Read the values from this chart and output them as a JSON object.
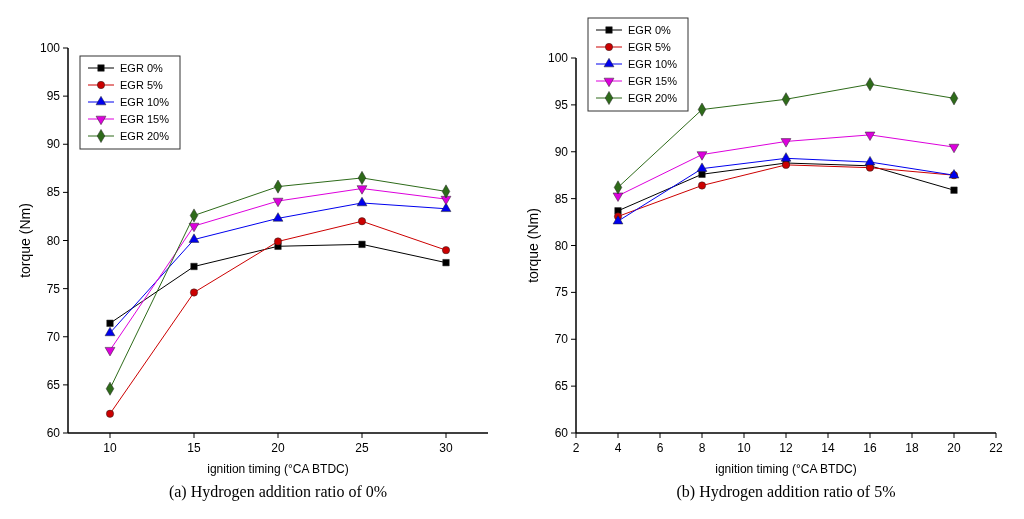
{
  "chart_data": [
    {
      "type": "line",
      "title": "(a) Hydrogen addition ratio of 0%",
      "xlabel": "ignition timing (°CA BTDC)",
      "ylabel": "torque (Nm)",
      "x": [
        10,
        15,
        20,
        25,
        30
      ],
      "xlim": [
        7.5,
        32.5
      ],
      "xticks": [
        10,
        15,
        20,
        25,
        30
      ],
      "ylim": [
        60,
        100
      ],
      "yticks": [
        60,
        65,
        70,
        75,
        80,
        85,
        90,
        95,
        100
      ],
      "legend": "top left",
      "grid": false,
      "series": [
        {
          "name": "EGR 0%",
          "color": "#000000",
          "marker": "square",
          "values": [
            71.4,
            77.3,
            79.4,
            79.6,
            77.7
          ]
        },
        {
          "name": "EGR 5%",
          "color": "#cc0000",
          "marker": "circle",
          "values": [
            62.0,
            74.6,
            79.9,
            82.0,
            79.0
          ]
        },
        {
          "name": "EGR 10%",
          "color": "#0000ee",
          "marker": "triangle",
          "values": [
            70.4,
            80.1,
            82.3,
            83.9,
            83.3
          ]
        },
        {
          "name": "EGR 15%",
          "color": "#dd00dd",
          "marker": "triangle-down",
          "values": [
            68.6,
            81.5,
            84.1,
            85.4,
            84.3
          ]
        },
        {
          "name": "EGR 20%",
          "color": "#2e6b1a",
          "marker": "diamond",
          "values": [
            64.6,
            82.6,
            85.6,
            86.5,
            85.1
          ]
        }
      ]
    },
    {
      "type": "line",
      "title": "(b) Hydrogen addition ratio of 5%",
      "xlabel": "ignition timing (°CA BTDC)",
      "ylabel": "torque (Nm)",
      "x": [
        4,
        8,
        12,
        16,
        20
      ],
      "xlim": [
        2,
        22
      ],
      "xticks": [
        2,
        4,
        6,
        8,
        10,
        12,
        14,
        16,
        18,
        20,
        22
      ],
      "ylim": [
        60,
        100
      ],
      "yticks": [
        60,
        65,
        70,
        75,
        80,
        85,
        90,
        95,
        100
      ],
      "legend": "top left",
      "grid": false,
      "series": [
        {
          "name": "EGR 0%",
          "color": "#000000",
          "marker": "square",
          "values": [
            83.7,
            87.6,
            88.8,
            88.5,
            85.9
          ]
        },
        {
          "name": "EGR 5%",
          "color": "#cc0000",
          "marker": "circle",
          "values": [
            83.1,
            86.4,
            88.6,
            88.3,
            87.5
          ]
        },
        {
          "name": "EGR 10%",
          "color": "#0000ee",
          "marker": "triangle",
          "values": [
            82.6,
            88.2,
            89.3,
            88.9,
            87.5
          ]
        },
        {
          "name": "EGR 15%",
          "color": "#dd00dd",
          "marker": "triangle-down",
          "values": [
            85.3,
            89.7,
            91.1,
            91.8,
            90.5
          ]
        },
        {
          "name": "EGR 20%",
          "color": "#2e6b1a",
          "marker": "diamond",
          "values": [
            86.2,
            94.5,
            95.6,
            97.2,
            95.7
          ]
        }
      ]
    }
  ]
}
